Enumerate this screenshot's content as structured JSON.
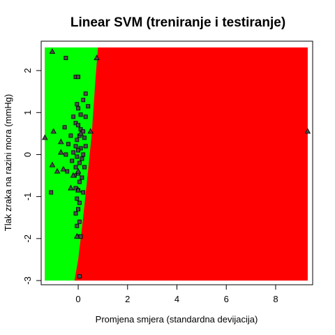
{
  "chart_data": {
    "type": "scatter",
    "title": "Linear SVM (treniranje i testiranje)",
    "xlabel": "Promjena smjera (standardna devijacija)",
    "ylabel": "Tlak zraka na razini mora (mmHg)",
    "xlim": [
      -1.5,
      9.5
    ],
    "ylim": [
      -3.1,
      2.7
    ],
    "xticks": [
      0,
      2,
      4,
      6,
      8
    ],
    "yticks": [
      -3,
      -2,
      -1,
      0,
      1,
      2
    ],
    "region_colors": {
      "left": "#00ff00",
      "right": "#ff0000"
    },
    "decision_boundary": [
      {
        "y": 2.55,
        "x": 0.8
      },
      {
        "y": 1.8,
        "x": 0.7
      },
      {
        "y": 0.5,
        "x": 0.55
      },
      {
        "y": -0.5,
        "x": 0.38
      },
      {
        "y": -1.5,
        "x": 0.2
      },
      {
        "y": -2.5,
        "x": 0.0
      },
      {
        "y": -3.0,
        "x": -0.15
      }
    ],
    "grid_extent": {
      "x": [
        -1.35,
        9.3
      ],
      "y": [
        -3.0,
        2.55
      ]
    },
    "grid": false,
    "series": [
      {
        "marker": "square",
        "points": [
          [
            -0.5,
            2.3
          ],
          [
            -0.1,
            1.85
          ],
          [
            0.0,
            1.85
          ],
          [
            0.3,
            1.45
          ],
          [
            0.2,
            1.3
          ],
          [
            -0.05,
            1.2
          ],
          [
            0.0,
            1.1
          ],
          [
            0.4,
            1.15
          ],
          [
            0.1,
            0.95
          ],
          [
            -0.2,
            0.9
          ],
          [
            0.3,
            0.9
          ],
          [
            -0.1,
            0.75
          ],
          [
            0.0,
            0.7
          ],
          [
            -0.55,
            0.65
          ],
          [
            0.1,
            0.6
          ],
          [
            0.2,
            0.55
          ],
          [
            -0.3,
            0.45
          ],
          [
            0.05,
            0.45
          ],
          [
            0.25,
            0.4
          ],
          [
            -0.05,
            0.35
          ],
          [
            -0.4,
            0.25
          ],
          [
            -0.1,
            0.2
          ],
          [
            0.1,
            0.15
          ],
          [
            0.3,
            0.2
          ],
          [
            0.0,
            0.1
          ],
          [
            -0.2,
            0.05
          ],
          [
            0.2,
            0.0
          ],
          [
            -0.5,
            0.0
          ],
          [
            -0.05,
            -0.05
          ],
          [
            0.15,
            -0.1
          ],
          [
            -0.25,
            -0.15
          ],
          [
            0.05,
            -0.2
          ],
          [
            -0.1,
            -0.3
          ],
          [
            0.25,
            -0.3
          ],
          [
            -0.45,
            -0.4
          ],
          [
            0.0,
            -0.45
          ],
          [
            -0.15,
            -0.5
          ],
          [
            0.15,
            -0.55
          ],
          [
            0.05,
            -0.65
          ],
          [
            -0.1,
            -0.8
          ],
          [
            0.0,
            -0.85
          ],
          [
            0.2,
            -0.9
          ],
          [
            -1.1,
            -0.9
          ],
          [
            -0.05,
            -1.05
          ],
          [
            0.05,
            -1.15
          ],
          [
            0.0,
            -1.3
          ],
          [
            -0.1,
            -1.4
          ],
          [
            0.05,
            -1.6
          ],
          [
            -0.05,
            -1.7
          ],
          [
            0.0,
            -1.95
          ],
          [
            0.1,
            -1.95
          ],
          [
            0.05,
            -2.9
          ]
        ]
      },
      {
        "marker": "triangle",
        "points": [
          [
            -1.05,
            2.45
          ],
          [
            0.75,
            2.3
          ],
          [
            -1.35,
            0.4
          ],
          [
            -0.7,
            0.3
          ],
          [
            -1.05,
            -0.25
          ],
          [
            -0.6,
            -0.35
          ],
          [
            -0.85,
            -0.4
          ],
          [
            0.0,
            -0.4
          ],
          [
            -0.2,
            -0.5
          ],
          [
            -0.3,
            -0.8
          ],
          [
            0.0,
            -0.85
          ],
          [
            -0.05,
            -1.95
          ],
          [
            0.5,
            0.55
          ],
          [
            9.3,
            0.55
          ],
          [
            -0.7,
            0.05
          ],
          [
            -1.0,
            0.55
          ],
          [
            0.1,
            0.5
          ]
        ]
      }
    ]
  }
}
